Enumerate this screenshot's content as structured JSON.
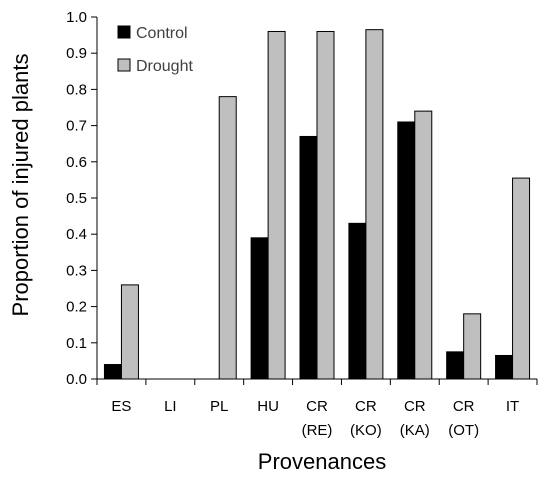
{
  "chart_data": {
    "type": "bar",
    "title": "",
    "xlabel": "Provenances",
    "ylabel": "Proportion of injured plants",
    "ylim": [
      0,
      1.0
    ],
    "yticks": [
      "0.0",
      "0.1",
      "0.2",
      "0.3",
      "0.4",
      "0.5",
      "0.6",
      "0.7",
      "0.8",
      "0.9",
      "1.0"
    ],
    "grid": false,
    "legend_position": "top-left",
    "categories": [
      [
        "ES"
      ],
      [
        "LI"
      ],
      [
        "PL"
      ],
      [
        "HU"
      ],
      [
        "CR",
        "(RE)"
      ],
      [
        "CR",
        "(KO)"
      ],
      [
        "CR",
        "(KA)"
      ],
      [
        "CR",
        "(OT)"
      ],
      [
        "IT"
      ]
    ],
    "series": [
      {
        "name": "Control",
        "color": "#000000",
        "values": [
          0.04,
          0.0,
          0.0,
          0.39,
          0.67,
          0.43,
          0.71,
          0.075,
          0.065
        ]
      },
      {
        "name": "Drought",
        "color": "#bfbfbf",
        "values": [
          0.26,
          0.0,
          0.78,
          0.96,
          0.96,
          0.965,
          0.74,
          0.18,
          0.555
        ]
      }
    ]
  }
}
